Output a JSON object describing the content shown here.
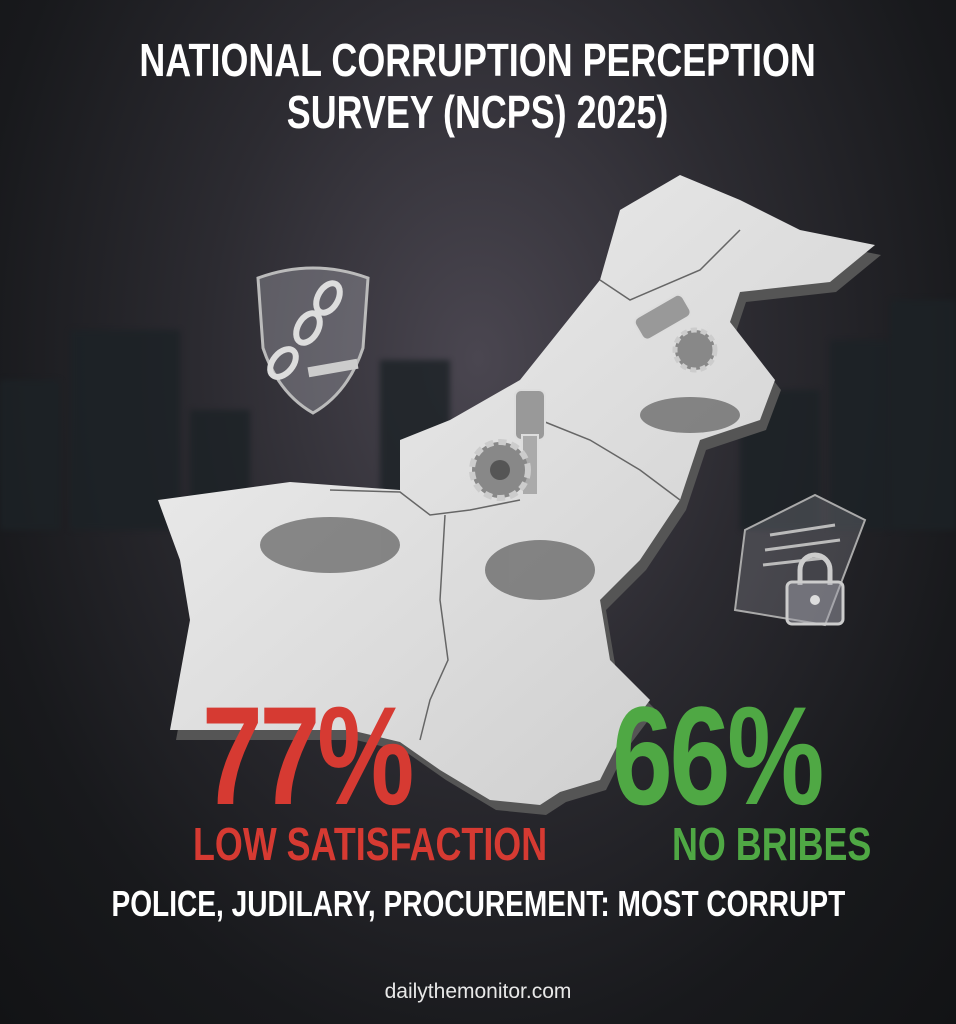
{
  "title": {
    "line1": "NATIONAL CORRUPTION PERCEPTION",
    "line2": "SURVEY (NCPS) 2025)"
  },
  "stats": [
    {
      "value": "77%",
      "label": "LOW SATISFACTION",
      "color": "#d63a32"
    },
    {
      "value": "66%",
      "label": "NO BRIBES",
      "color": "#4fa844"
    }
  ],
  "tagline": "POLICE, JUDILARY, PROCUREMENT: MOST CORRUPT",
  "website": "dailythemonitor.com",
  "icons": [
    "police-shield-chain-icon",
    "gavel-gears-icon",
    "document-lock-icon"
  ]
}
